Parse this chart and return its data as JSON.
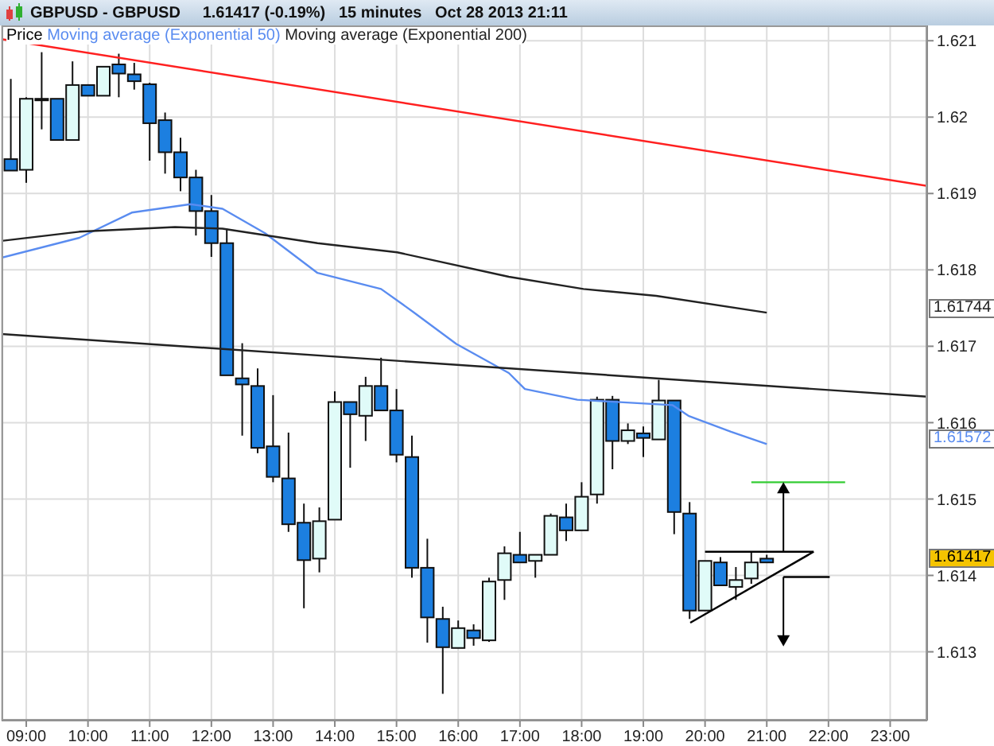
{
  "chart_data": {
    "type": "candlestick",
    "title": "GBPUSD - GBPUSD",
    "subtitle": "1.61417 (-0.19%)   15 minutes   Oct 28 2013 21:11",
    "xlim": [
      8.6,
      23.6
    ],
    "xticks": [
      {
        "value": 9,
        "label": "09:00"
      },
      {
        "value": 10,
        "label": "10:00"
      },
      {
        "value": 11,
        "label": "11:00"
      },
      {
        "value": 12,
        "label": "12:00"
      },
      {
        "value": 13,
        "label": "13:00"
      },
      {
        "value": 14,
        "label": "14:00"
      },
      {
        "value": 15,
        "label": "15:00"
      },
      {
        "value": 16,
        "label": "16:00"
      },
      {
        "value": 17,
        "label": "17:00"
      },
      {
        "value": 18,
        "label": "18:00"
      },
      {
        "value": 19,
        "label": "19:00"
      },
      {
        "value": 20,
        "label": "20:00"
      },
      {
        "value": 21,
        "label": "21:00"
      },
      {
        "value": 22,
        "label": "22:00"
      },
      {
        "value": 23,
        "label": "23:00"
      }
    ],
    "ylim": [
      1.6121,
      1.6212
    ],
    "yticks": [
      1.613,
      1.614,
      1.615,
      1.616,
      1.617,
      1.618,
      1.619,
      1.62,
      1.621
    ],
    "grid": true,
    "legend": "top left",
    "annotations": [
      "1.61417",
      "1.61572",
      "1.61744"
    ],
    "series": [
      {
        "name": "Price",
        "x": [
          8.75,
          9,
          9.25,
          9.5,
          9.75,
          10,
          10.25,
          10.5,
          10.75,
          11,
          11.25,
          11.5,
          11.75,
          12,
          12.25,
          12.5,
          12.75,
          13,
          13.25,
          13.5,
          13.75,
          14,
          14.25,
          14.5,
          14.75,
          15,
          15.25,
          15.5,
          15.75,
          16,
          16.25,
          16.5,
          16.75,
          17,
          17.25,
          17.5,
          17.75,
          18,
          18.25,
          18.5,
          18.75,
          19,
          19.25,
          19.5,
          19.75,
          20,
          20.25,
          20.5,
          20.75,
          21
        ],
        "ohlc": [
          [
            1.61945,
            1.6205,
            1.6193,
            1.6193
          ],
          [
            1.61931,
            1.62026,
            1.61914,
            1.62024
          ],
          [
            1.62024,
            1.62085,
            1.61984,
            1.62022
          ],
          [
            1.62024,
            1.62024,
            1.6197,
            1.6197
          ],
          [
            1.6197,
            1.62073,
            1.6197,
            1.62042
          ],
          [
            1.62042,
            1.62043,
            1.62028,
            1.62028
          ],
          [
            1.62028,
            1.62066,
            1.62028,
            1.62066
          ],
          [
            1.62069,
            1.62083,
            1.62026,
            1.62057
          ],
          [
            1.62056,
            1.62071,
            1.62036,
            1.62047
          ],
          [
            1.62043,
            1.62045,
            1.61943,
            1.61992
          ],
          [
            1.61996,
            1.62006,
            1.61926,
            1.61954
          ],
          [
            1.61954,
            1.61973,
            1.61903,
            1.61921
          ],
          [
            1.61921,
            1.61931,
            1.61845,
            1.61877
          ],
          [
            1.61877,
            1.61898,
            1.61817,
            1.61835
          ],
          [
            1.61835,
            1.61854,
            1.61662,
            1.61662
          ],
          [
            1.61658,
            1.61704,
            1.61583,
            1.6165
          ],
          [
            1.61648,
            1.61671,
            1.6156,
            1.61567
          ],
          [
            1.61569,
            1.61636,
            1.61522,
            1.61529
          ],
          [
            1.61527,
            1.61587,
            1.61457,
            1.61467
          ],
          [
            1.61469,
            1.61494,
            1.61357,
            1.6142
          ],
          [
            1.61422,
            1.61489,
            1.61404,
            1.61471
          ],
          [
            1.61473,
            1.61641,
            1.61473,
            1.61627
          ],
          [
            1.61627,
            1.61627,
            1.61541,
            1.61611
          ],
          [
            1.61609,
            1.6166,
            1.61576,
            1.61648
          ],
          [
            1.61648,
            1.61685,
            1.61616,
            1.61616
          ],
          [
            1.61616,
            1.61644,
            1.61548,
            1.61558
          ],
          [
            1.61555,
            1.61583,
            1.61397,
            1.6141
          ],
          [
            1.6141,
            1.61448,
            1.61312,
            1.61345
          ],
          [
            1.61343,
            1.61359,
            1.61245,
            1.61306
          ],
          [
            1.61305,
            1.61341,
            1.61305,
            1.61331
          ],
          [
            1.61328,
            1.61336,
            1.61308,
            1.61318
          ],
          [
            1.61315,
            1.61397,
            1.61313,
            1.61392
          ],
          [
            1.61394,
            1.61438,
            1.61368,
            1.61429
          ],
          [
            1.61427,
            1.61457,
            1.61417,
            1.61417
          ],
          [
            1.61419,
            1.61427,
            1.61397,
            1.61427
          ],
          [
            1.61427,
            1.61481,
            1.61427,
            1.61478
          ],
          [
            1.61476,
            1.61494,
            1.61445,
            1.61459
          ],
          [
            1.61459,
            1.61522,
            1.61459,
            1.61503
          ],
          [
            1.61506,
            1.61634,
            1.61494,
            1.6163
          ],
          [
            1.6163,
            1.61635,
            1.61539,
            1.61576
          ],
          [
            1.61576,
            1.61599,
            1.61572,
            1.6159
          ],
          [
            1.61586,
            1.61595,
            1.61555,
            1.6158
          ],
          [
            1.61578,
            1.61656,
            1.61578,
            1.61629
          ],
          [
            1.61629,
            1.61629,
            1.61454,
            1.61483
          ],
          [
            1.61481,
            1.61496,
            1.61343,
            1.61354
          ],
          [
            1.61354,
            1.61419,
            1.61354,
            1.61419
          ],
          [
            1.61417,
            1.61424,
            1.61387,
            1.61387
          ],
          [
            1.61385,
            1.61411,
            1.61368,
            1.61394
          ],
          [
            1.61396,
            1.61431,
            1.61389,
            1.61417
          ],
          [
            1.61422,
            1.61427,
            1.61417,
            1.61417
          ]
        ],
        "colors": [
          "#1c7fe0",
          "#e0fbf8",
          "#1c7fe0",
          "#1c7fe0",
          "#e0fbf8",
          "#1c7fe0",
          "#e0fbf8",
          "#1c7fe0",
          "#1c7fe0",
          "#1c7fe0",
          "#1c7fe0",
          "#1c7fe0",
          "#1c7fe0",
          "#1c7fe0",
          "#1c7fe0",
          "#1c7fe0",
          "#1c7fe0",
          "#1c7fe0",
          "#1c7fe0",
          "#1c7fe0",
          "#e0fbf8",
          "#e0fbf8",
          "#1c7fe0",
          "#e0fbf8",
          "#1c7fe0",
          "#1c7fe0",
          "#1c7fe0",
          "#1c7fe0",
          "#1c7fe0",
          "#e0fbf8",
          "#1c7fe0",
          "#e0fbf8",
          "#e0fbf8",
          "#1c7fe0",
          "#e0fbf8",
          "#e0fbf8",
          "#1c7fe0",
          "#e0fbf8",
          "#e0fbf8",
          "#1c7fe0",
          "#e0fbf8",
          "#1c7fe0",
          "#e0fbf8",
          "#1c7fe0",
          "#1c7fe0",
          "#e0fbf8",
          "#1c7fe0",
          "#e0fbf8",
          "#e0fbf8",
          "#1c7fe0"
        ]
      },
      {
        "name": "Moving average (Exponential 50)",
        "type": "line",
        "color": "#5a8cf0",
        "x": [
          8.6,
          9.86,
          10.71,
          11.66,
          12.18,
          12.87,
          13.72,
          14.75,
          15.27,
          15.97,
          16.82,
          17.08,
          17.93,
          19.47,
          19.73,
          20.42,
          21
        ],
        "values": [
          1.61816,
          1.61842,
          1.61875,
          1.61886,
          1.6188,
          1.61848,
          1.61796,
          1.61775,
          1.61745,
          1.61703,
          1.61665,
          1.61644,
          1.6163,
          1.61623,
          1.61609,
          1.61588,
          1.61572
        ]
      },
      {
        "name": "Moving average (Exponential 200)",
        "type": "line",
        "color": "#222222",
        "x": [
          8.6,
          9.86,
          11.41,
          12.18,
          13.72,
          15.01,
          16.82,
          18.03,
          19.21,
          21
        ],
        "values": [
          1.61838,
          1.6185,
          1.61856,
          1.61854,
          1.61835,
          1.61823,
          1.61791,
          1.61775,
          1.61766,
          1.61744
        ]
      },
      {
        "type": "line",
        "color": "#ff2020",
        "x": [
          8.6,
          23.6
        ],
        "values": [
          1.62102,
          1.6191
        ]
      },
      {
        "type": "line",
        "color": "#222222",
        "x": [
          8.6,
          23.6
        ],
        "values": [
          1.61716,
          1.61634
        ]
      },
      {
        "type": "line",
        "color": "#000000",
        "x": [
          20,
          21.76
        ],
        "values": [
          1.61431,
          1.61431
        ]
      },
      {
        "type": "line",
        "color": "#000000",
        "x": [
          19.76,
          21.76
        ],
        "values": [
          1.61338,
          1.61431
        ]
      },
      {
        "type": "line",
        "color": "#33cc33",
        "x": [
          20.75,
          22.27
        ],
        "values": [
          1.61522,
          1.61522
        ]
      },
      {
        "type": "line",
        "color": "#000000",
        "x": [
          21.27,
          22.02
        ],
        "values": [
          1.61398,
          1.61398
        ]
      }
    ]
  }
}
